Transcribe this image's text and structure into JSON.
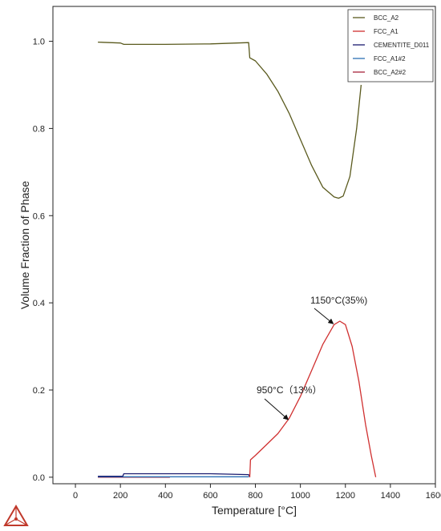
{
  "chart_data": {
    "type": "line",
    "title": "",
    "xlabel": "Temperature [°C]",
    "ylabel": "Volume Fraction of Phase",
    "xlim": [
      -100,
      1600
    ],
    "ylim": [
      -0.015,
      1.08
    ],
    "xticks": [
      "0",
      "200",
      "400",
      "600",
      "800",
      "1000",
      "1200",
      "1400",
      "1600"
    ],
    "yticks": [
      "0.0",
      "0.2",
      "0.4",
      "0.6",
      "0.8",
      "1.0"
    ],
    "grid": false,
    "legend_position": "top-right",
    "series": [
      {
        "name": "BCC_A2",
        "color": "#5a5a1e",
        "x": [
          100,
          200,
          215,
          400,
          600,
          770,
          775,
          800,
          850,
          900,
          950,
          1000,
          1050,
          1100,
          1150,
          1170,
          1190,
          1220,
          1250,
          1270
        ],
        "y": [
          0.998,
          0.996,
          0.993,
          0.993,
          0.994,
          0.997,
          0.962,
          0.955,
          0.925,
          0.885,
          0.835,
          0.775,
          0.715,
          0.665,
          0.643,
          0.64,
          0.645,
          0.69,
          0.8,
          0.9
        ]
      },
      {
        "name": "FCC_A1",
        "color": "#d03030",
        "x": [
          775,
          778,
          800,
          850,
          900,
          950,
          1000,
          1050,
          1100,
          1150,
          1175,
          1200,
          1230,
          1260,
          1290,
          1315,
          1335
        ],
        "y": [
          0.0,
          0.04,
          0.05,
          0.075,
          0.1,
          0.135,
          0.185,
          0.245,
          0.305,
          0.35,
          0.358,
          0.35,
          0.3,
          0.22,
          0.12,
          0.05,
          0.0
        ]
      },
      {
        "name": "CEMENTITE_D011",
        "color": "#1a1a6e",
        "x": [
          100,
          200,
          210,
          215,
          400,
          600,
          770,
          775
        ],
        "y": [
          0.002,
          0.002,
          0.002,
          0.008,
          0.008,
          0.008,
          0.006,
          0.0
        ]
      },
      {
        "name": "FCC_A1#2",
        "color": "#2d6fb4",
        "x": [
          100,
          200,
          215,
          400,
          600,
          770
        ],
        "y": [
          0.001,
          0.001,
          0.001,
          0.001,
          0.001,
          0.001
        ]
      },
      {
        "name": "BCC_A2#2",
        "color": "#a8243c",
        "x": [
          100,
          200,
          300,
          420
        ],
        "y": [
          0.0,
          0.0,
          0.0,
          0.0
        ]
      }
    ],
    "annotations": [
      {
        "text": "1150°C(35%)",
        "x": 1150,
        "y": 0.35
      },
      {
        "text": "950°C（13%）",
        "x": 950,
        "y": 0.13
      }
    ]
  }
}
